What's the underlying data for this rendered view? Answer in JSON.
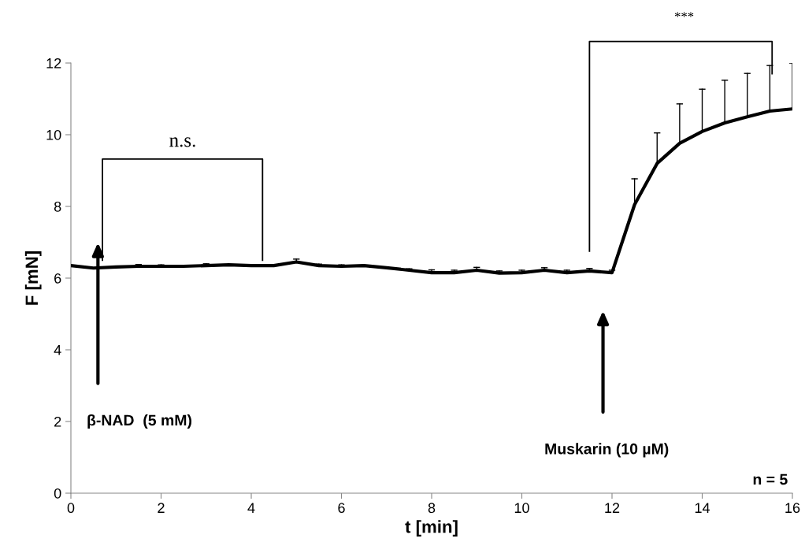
{
  "chart_data": {
    "type": "line",
    "xlabel": "t [min]",
    "ylabel": "F [mN]",
    "x": [
      0,
      0.5,
      1,
      1.5,
      2,
      2.5,
      3,
      3.5,
      4,
      4.5,
      5,
      5.5,
      6,
      6.5,
      7,
      7.5,
      8,
      8.5,
      9,
      9.5,
      10,
      10.5,
      11,
      11.5,
      12,
      12.5,
      13,
      13.5,
      14,
      14.5,
      15,
      15.5,
      16
    ],
    "series": [
      {
        "color": "#000000",
        "values": [
          6.35,
          6.28,
          6.31,
          6.33,
          6.33,
          6.33,
          6.35,
          6.37,
          6.35,
          6.35,
          6.45,
          6.35,
          6.33,
          6.35,
          6.29,
          6.22,
          6.15,
          6.15,
          6.22,
          6.14,
          6.15,
          6.22,
          6.15,
          6.2,
          6.15,
          8.05,
          9.2,
          9.76,
          10.09,
          10.33,
          10.5,
          10.66,
          10.72
        ],
        "errors": [
          null,
          null,
          null,
          [
            6.33,
            6.38
          ],
          [
            6.33,
            6.37
          ],
          null,
          [
            6.35,
            6.4
          ],
          null,
          null,
          null,
          [
            6.45,
            6.53
          ],
          [
            6.35,
            6.39
          ],
          [
            6.33,
            6.37
          ],
          null,
          null,
          [
            6.22,
            6.26
          ],
          [
            6.15,
            6.23
          ],
          [
            6.15,
            6.22
          ],
          [
            6.22,
            6.3
          ],
          [
            6.14,
            6.2
          ],
          [
            6.15,
            6.22
          ],
          [
            6.22,
            6.29
          ],
          [
            6.15,
            6.22
          ],
          [
            6.2,
            6.27
          ],
          [
            6.15,
            6.22
          ],
          [
            8.05,
            8.77
          ],
          [
            9.2,
            10.05
          ],
          [
            9.76,
            10.86
          ],
          [
            10.09,
            11.27
          ],
          [
            10.33,
            11.52
          ],
          [
            10.5,
            11.71
          ],
          [
            10.66,
            11.93
          ],
          [
            10.72,
            12.0
          ]
        ]
      }
    ],
    "xlim": [
      0,
      16
    ],
    "xticks": [
      0,
      2,
      4,
      6,
      8,
      10,
      12,
      14,
      16
    ],
    "ylim": [
      0,
      12
    ],
    "yticks": [
      0,
      2,
      4,
      6,
      8,
      10,
      12
    ],
    "grid": false,
    "marker": "none",
    "line_style": "solid",
    "annotations": [
      "n.s.",
      "***",
      "β-NAD  (5 mM)",
      "Muskarin (10 µM)",
      "n = 5"
    ]
  }
}
